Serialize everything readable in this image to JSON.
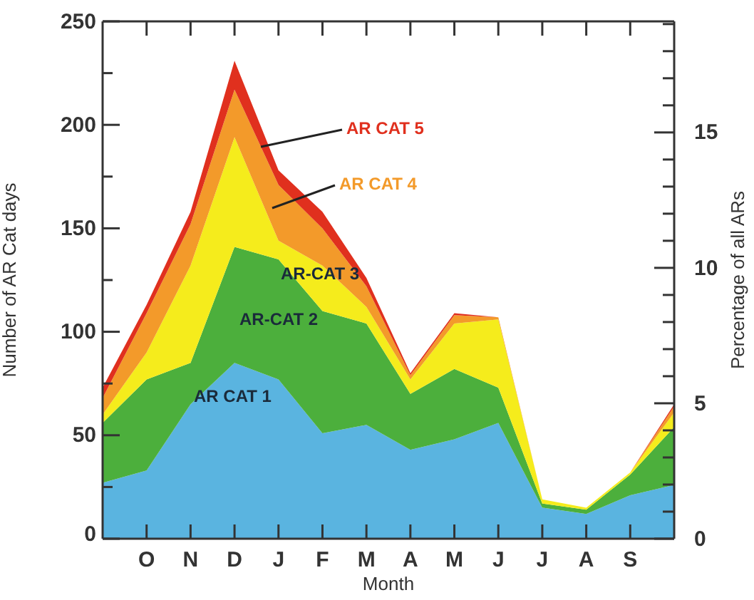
{
  "chart_data": {
    "type": "area",
    "stacked": true,
    "xlabel": "Month",
    "ylabel": "Number of AR Cat days",
    "y2label": "Percentage of all ARs",
    "categories": [
      null,
      "O",
      "N",
      "D",
      "J",
      "F",
      "M",
      "A",
      "M",
      "J",
      "J",
      "A",
      "S",
      null
    ],
    "ylim": [
      0,
      250
    ],
    "yticks": [
      0,
      {
        "value": 25,
        "label": null
      },
      50,
      {
        "value": 75,
        "label": null
      },
      100,
      {
        "value": 125,
        "label": null
      },
      150,
      {
        "value": 175,
        "label": null
      },
      200,
      {
        "value": 225,
        "label": null
      },
      250
    ],
    "y2lim": [
      0,
      19.1
    ],
    "y2ticks": [
      0,
      {
        "value": 1,
        "label": null
      },
      {
        "value": 2,
        "label": null
      },
      {
        "value": 3,
        "label": null
      },
      {
        "value": 4,
        "label": null
      },
      5,
      {
        "value": 6,
        "label": null
      },
      {
        "value": 7,
        "label": null
      },
      {
        "value": 8,
        "label": null
      },
      {
        "value": 9,
        "label": null
      },
      10,
      {
        "value": 11,
        "label": null
      },
      {
        "value": 12,
        "label": null
      },
      {
        "value": 13,
        "label": null
      },
      {
        "value": 14,
        "label": null
      },
      15,
      {
        "value": 16,
        "label": null
      },
      {
        "value": 17,
        "label": null
      },
      {
        "value": 18,
        "label": null
      },
      {
        "value": 19,
        "label": null
      }
    ],
    "series": [
      {
        "name": "AR CAT 1",
        "color": "#5ab4e0",
        "values": [
          27,
          33,
          65,
          85,
          77,
          51,
          55,
          43,
          48,
          56,
          15,
          12,
          21,
          26
        ]
      },
      {
        "name": "AR-CAT 2",
        "color": "#4caf3c",
        "values": [
          29,
          44,
          20,
          56,
          58,
          59,
          49,
          27,
          34,
          17,
          2,
          2,
          10,
          28
        ]
      },
      {
        "name": "AR-CAT 3",
        "color": "#f5ec1c",
        "values": [
          4,
          13,
          47,
          53,
          9,
          22,
          8,
          7,
          22,
          33,
          2,
          1,
          1,
          7
        ]
      },
      {
        "name": "AR CAT 4",
        "color": "#f39a2a",
        "values": [
          8,
          19,
          20,
          23,
          27,
          18,
          10,
          2,
          4,
          1,
          0,
          0,
          0,
          3
        ]
      },
      {
        "name": "AR CAT 5",
        "color": "#e0301e",
        "values": [
          5,
          4,
          6,
          14,
          7,
          8,
          4,
          1,
          1,
          0,
          0,
          0,
          0,
          1
        ]
      }
    ]
  }
}
